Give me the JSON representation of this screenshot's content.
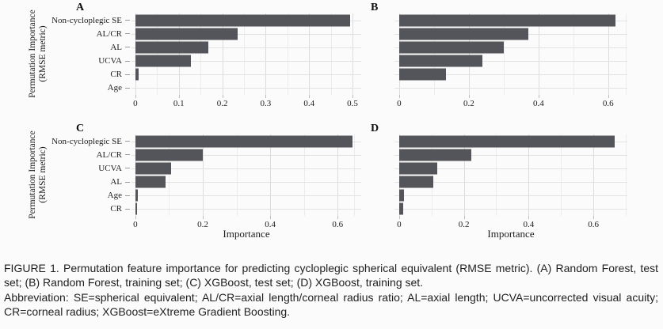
{
  "figure": {
    "y_axis_title": {
      "line1": "Permutation Importance",
      "line2": "(RMSE metric)"
    },
    "x_axis_title": "Importance",
    "bar_color": "#54555a",
    "grid_major_color": "#dcdcdc",
    "grid_minor_color": "#ececec"
  },
  "chart_data": [
    {
      "type": "bar",
      "orientation": "horizontal",
      "panel": "A",
      "description": "Random Forest, test set",
      "categories": [
        "Non-cycloplegic SE",
        "AL/CR",
        "AL",
        "UCVA",
        "CR",
        "Age"
      ],
      "values": [
        0.495,
        0.235,
        0.168,
        0.127,
        0.008,
        0
      ],
      "xticks": [
        0,
        0.1,
        0.2,
        0.3,
        0.4,
        0.5
      ],
      "xtick_labels": [
        "0",
        "0.1",
        "0.2",
        "0.3",
        "0.4",
        "0.5"
      ],
      "minor_ticks": [
        0.05,
        0.15,
        0.25,
        0.35,
        0.45
      ],
      "xlim": [
        0,
        0.52
      ],
      "grid": true,
      "show_category_labels": true,
      "show_x_axis_title": false
    },
    {
      "type": "bar",
      "orientation": "horizontal",
      "panel": "B",
      "description": "Random Forest, training set",
      "categories": [
        "Non-cycloplegic SE",
        "AL/CR",
        "AL",
        "UCVA",
        "CR",
        "Age"
      ],
      "values": [
        0.62,
        0.37,
        0.3,
        0.24,
        0.135,
        0
      ],
      "xticks": [
        0,
        0.2,
        0.4,
        0.6
      ],
      "xtick_labels": [
        "0",
        "0.2",
        "0.4",
        "0.6"
      ],
      "minor_ticks": [
        0.1,
        0.3,
        0.5,
        0.65
      ],
      "xlim": [
        0,
        0.655
      ],
      "grid": true,
      "show_category_labels": false,
      "show_x_axis_title": false
    },
    {
      "type": "bar",
      "orientation": "horizontal",
      "panel": "C",
      "description": "XGBoost, test set",
      "categories": [
        "Non-cycloplegic SE",
        "AL/CR",
        "UCVA",
        "AL",
        "Age",
        "CR"
      ],
      "values": [
        0.645,
        0.201,
        0.105,
        0.089,
        0.008,
        0.004
      ],
      "xticks": [
        0,
        0.2,
        0.4,
        0.6
      ],
      "xtick_labels": [
        "0",
        "0.2",
        "0.4",
        "0.6"
      ],
      "minor_ticks": [
        0.1,
        0.3,
        0.5,
        0.65
      ],
      "xlim": [
        0,
        0.67
      ],
      "grid": true,
      "show_category_labels": true,
      "show_x_axis_title": true
    },
    {
      "type": "bar",
      "orientation": "horizontal",
      "panel": "D",
      "description": "XGBoost, training set",
      "categories": [
        "Non-cycloplegic SE",
        "AL/CR",
        "UCVA",
        "AL",
        "Age",
        "CR"
      ],
      "values": [
        0.665,
        0.222,
        0.118,
        0.106,
        0.015,
        0.012
      ],
      "xticks": [
        0,
        0.2,
        0.4,
        0.6
      ],
      "xtick_labels": [
        "0",
        "0.2",
        "0.4",
        "0.6"
      ],
      "minor_ticks": [
        0.1,
        0.3,
        0.5,
        0.7
      ],
      "xlim": [
        0,
        0.705
      ],
      "grid": true,
      "show_category_labels": false,
      "show_x_axis_title": true
    }
  ],
  "caption": {
    "para1": "FIGURE 1. Permutation feature importance for predicting cycloplegic spherical equivalent (RMSE metric). (A) Random Forest, test set; (B) Random Forest, training set; (C) XGBoost, test set; (D) XGBoost, training set.",
    "para2": "Abbreviation: SE=spherical equivalent; AL/CR=axial length/corneal radius ratio; AL=axial length; UCVA=uncorrected visual acuity; CR=corneal radius; XGBoost=eXtreme Gradient Boosting."
  }
}
